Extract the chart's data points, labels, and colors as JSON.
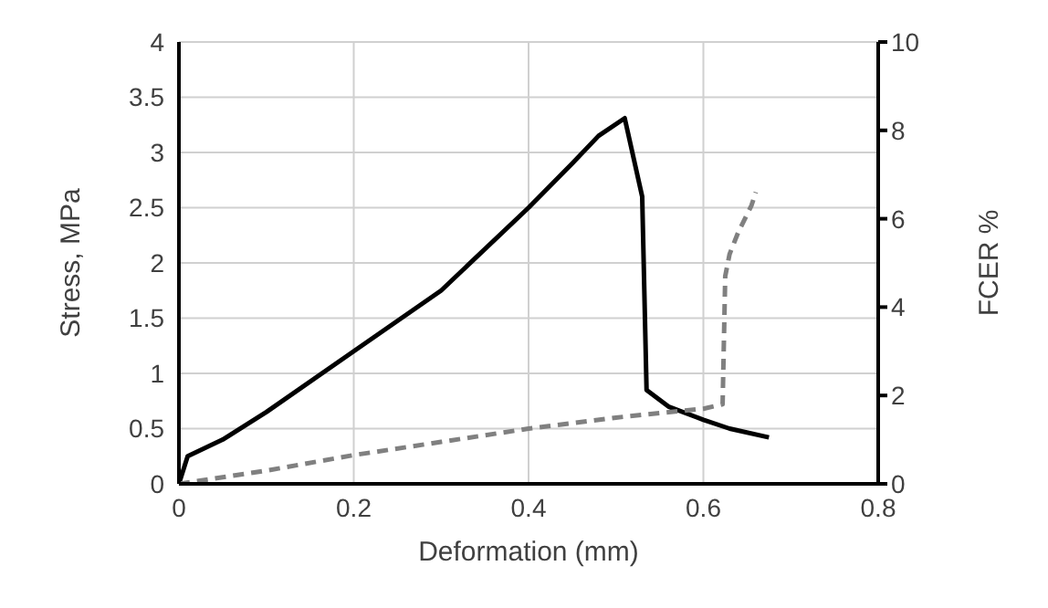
{
  "chart_data": {
    "type": "line",
    "xlabel": "Deformation (mm)",
    "ylabel": "Stress, MPa",
    "y2label": "FCER %",
    "series": [
      {
        "color": "#000000",
        "line_style": "solid",
        "x": [
          0,
          0.01,
          0.05,
          0.1,
          0.2,
          0.3,
          0.4,
          0.45,
          0.48,
          0.51,
          0.53,
          0.535,
          0.56,
          0.6,
          0.63,
          0.675
        ],
        "values": [
          0,
          0.25,
          0.4,
          0.65,
          1.2,
          1.75,
          2.5,
          2.9,
          3.15,
          3.31,
          2.6,
          0.85,
          0.7,
          0.58,
          0.5,
          0.42
        ]
      },
      {
        "color": "#808080",
        "line_style": "dashed",
        "axis": "y2",
        "x": [
          0,
          0.1,
          0.2,
          0.3,
          0.4,
          0.5,
          0.6,
          0.622,
          0.625,
          0.63,
          0.64,
          0.655,
          0.66
        ],
        "values": [
          0,
          0.3,
          0.65,
          0.95,
          1.25,
          1.5,
          1.7,
          1.8,
          4.7,
          5.2,
          5.7,
          6.3,
          6.6
        ]
      }
    ],
    "xlim": [
      0,
      0.8
    ],
    "xticks": [
      0,
      0.2,
      0.4,
      0.6,
      0.8
    ],
    "ylim": [
      0,
      4
    ],
    "yticks": [
      0,
      0.5,
      1,
      1.5,
      2,
      2.5,
      3,
      3.5,
      4
    ],
    "y2lim": [
      0,
      10
    ],
    "y2ticks": [
      0,
      2,
      4,
      6,
      8,
      10
    ],
    "grid": true,
    "marker": "none"
  }
}
